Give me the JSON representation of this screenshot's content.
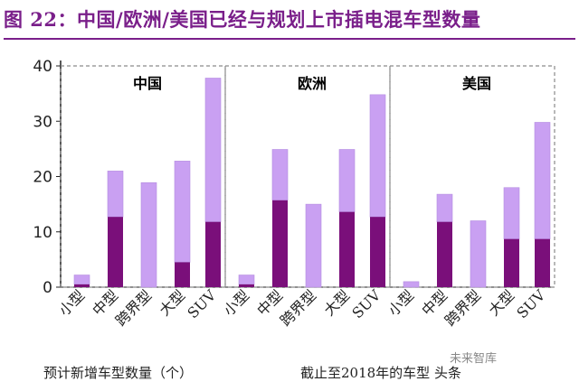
{
  "title": "图 22：中国/欧洲/美国已经与规划上市插电混车型数量",
  "chart_data": {
    "type": "bar",
    "stacked": true,
    "ylim": [
      0,
      40
    ],
    "yticks": [
      0,
      10,
      20,
      30,
      40
    ],
    "categories": [
      "小型",
      "中型",
      "跨界型",
      "大型",
      "SUV"
    ],
    "panels": [
      {
        "name": "中国",
        "existing": [
          0.5,
          12.7,
          0,
          4.5,
          11.8
        ],
        "total": [
          2.2,
          21,
          18.9,
          22.8,
          37.8
        ]
      },
      {
        "name": "欧洲",
        "existing": [
          0.5,
          15.7,
          0,
          13.6,
          12.7
        ],
        "total": [
          2.2,
          24.9,
          15,
          24.9,
          34.8
        ]
      },
      {
        "name": "美国",
        "existing": [
          0,
          11.8,
          0,
          8.7,
          8.7
        ],
        "total": [
          1,
          16.8,
          12,
          18,
          29.8
        ]
      }
    ],
    "colors": {
      "existing": "#7a0f7a",
      "planned": "#c9a0f2",
      "axis": "#222222",
      "divider": "#8a8a8a"
    },
    "grid": false
  },
  "footer": {
    "left": "预计新增车型数量（个）",
    "right": "截止至2018年的车型 头条"
  },
  "watermark": "未来智库"
}
